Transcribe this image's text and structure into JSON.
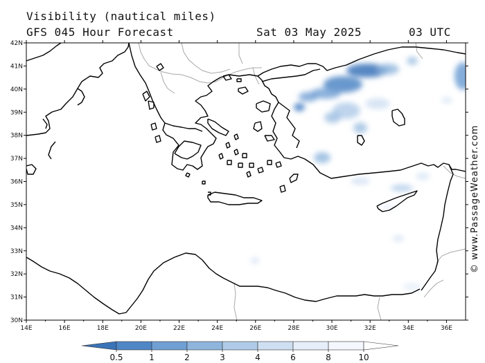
{
  "header": {
    "line1": "Visibility (nautical miles)",
    "line2_left": "GFS 045 Hour Forecast",
    "line2_date": "Sat 03 May 2025",
    "line2_time": "03 UTC"
  },
  "copyright": "© www.PassageWeather.com",
  "map": {
    "lat_labels": [
      "42N",
      "41N",
      "40N",
      "39N",
      "38N",
      "37N",
      "36N",
      "35N",
      "34N",
      "33N",
      "32N",
      "31N",
      "30N"
    ],
    "lon_labels": [
      "14E",
      "16E",
      "18E",
      "20E",
      "22E",
      "24E",
      "26E",
      "28E",
      "30E",
      "32E",
      "34E",
      "36E"
    ],
    "lat_range": [
      30,
      42
    ],
    "lon_range": [
      14,
      37
    ]
  },
  "colorbar": {
    "labels": [
      "0.5",
      "1",
      "2",
      "3",
      "4",
      "6",
      "8",
      "10"
    ],
    "colors": [
      "#3a73b8",
      "#4f86c6",
      "#6f9fd3",
      "#8fb5dd",
      "#afcbe8",
      "#cfdff2",
      "#e6eef9",
      "#f4f8fd",
      "#ffffff"
    ]
  }
}
